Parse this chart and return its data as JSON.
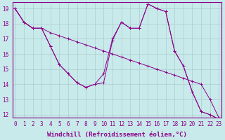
{
  "xlabel": "Windchill (Refroidissement éolien,°C)",
  "bg_color": "#c8eaea",
  "line_color": "#8b008b",
  "grid_color": "#aacccc",
  "xmin": 0,
  "xmax": 23,
  "ymin": 12,
  "ymax": 19,
  "series": [
    [
      19.0,
      18.1,
      17.7,
      17.7,
      17.4,
      17.2,
      17.0,
      16.8,
      16.6,
      16.4,
      16.2,
      16.0,
      15.8,
      15.6,
      15.4,
      15.2,
      15.0,
      14.8,
      14.6,
      14.4,
      14.2,
      14.0,
      13.0,
      11.8
    ],
    [
      19.0,
      18.1,
      17.7,
      17.7,
      16.5,
      15.3,
      14.7,
      14.1,
      13.8,
      14.0,
      14.7,
      17.0,
      18.1,
      17.7,
      17.7,
      19.3,
      19.0,
      18.8,
      16.2,
      15.2,
      13.5,
      12.2,
      12.0,
      11.7
    ],
    [
      19.0,
      18.1,
      17.7,
      17.7,
      16.5,
      15.3,
      14.7,
      14.1,
      13.8,
      14.0,
      14.1,
      16.9,
      18.1,
      17.7,
      17.7,
      19.3,
      19.0,
      18.8,
      16.2,
      15.2,
      13.5,
      12.2,
      12.0,
      11.7
    ]
  ],
  "tick_fontsize": 5.5,
  "xlabel_fontsize": 6.5
}
